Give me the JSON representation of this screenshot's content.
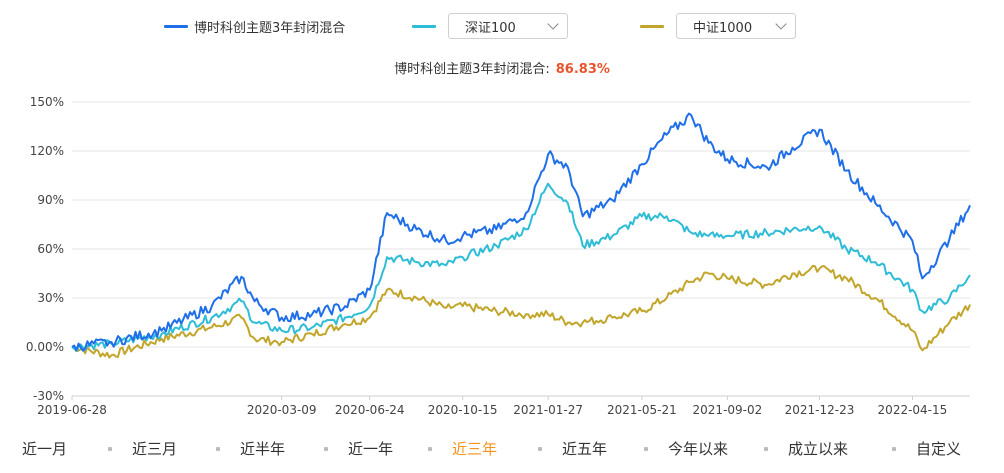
{
  "legend": {
    "series1": {
      "label": "博时科创主题3年封闭混合",
      "color": "#1f6fe8"
    },
    "series2": {
      "label": "深证100",
      "color": "#2fbcd6"
    },
    "series3": {
      "label": "中证1000",
      "color": "#c2a62c"
    }
  },
  "summary": {
    "name": "博时科创主题3年封闭混合:",
    "value": "86.83%"
  },
  "tabs": [
    {
      "label": "近一月",
      "active": false
    },
    {
      "label": "近三月",
      "active": false
    },
    {
      "label": "近半年",
      "active": false
    },
    {
      "label": "近一年",
      "active": false
    },
    {
      "label": "近三年",
      "active": true
    },
    {
      "label": "近五年",
      "active": false
    },
    {
      "label": "今年以来",
      "active": false
    },
    {
      "label": "成立以来",
      "active": false
    },
    {
      "label": "自定义",
      "active": false
    }
  ],
  "chart_data": {
    "type": "line",
    "title": "",
    "xlabel": "",
    "ylabel": "",
    "ylim": [
      -30,
      150
    ],
    "y_ticks": [
      "-30%",
      "0.00%",
      "30%",
      "60%",
      "90%",
      "120%",
      "150%"
    ],
    "x_tick_labels": [
      "2019-06-28",
      "2020-03-09",
      "2020-06-24",
      "2020-10-15",
      "2021-01-27",
      "2021-05-21",
      "2021-09-02",
      "2021-12-23",
      "2022-04-15"
    ],
    "grid": true,
    "x": [
      "2019-06-28",
      "2019-08-15",
      "2019-10-15",
      "2019-12-15",
      "2020-01-20",
      "2020-02-05",
      "2020-03-09",
      "2020-04-15",
      "2020-05-25",
      "2020-06-24",
      "2020-07-15",
      "2020-08-20",
      "2020-09-25",
      "2020-10-15",
      "2020-11-25",
      "2020-12-31",
      "2021-01-27",
      "2021-02-20",
      "2021-03-10",
      "2021-04-15",
      "2021-05-21",
      "2021-06-20",
      "2021-07-20",
      "2021-08-10",
      "2021-09-02",
      "2021-10-20",
      "2021-11-20",
      "2021-12-23",
      "2022-01-25",
      "2022-03-01",
      "2022-04-15",
      "2022-04-27",
      "2022-05-30",
      "2022-06-24"
    ],
    "series": [
      {
        "name": "博时科创主题3年封闭混合",
        "color": "#1f6fe8",
        "values": [
          0,
          3,
          10,
          25,
          43,
          28,
          18,
          20,
          25,
          35,
          82,
          72,
          65,
          68,
          72,
          82,
          118,
          110,
          80,
          90,
          112,
          130,
          142,
          125,
          115,
          110,
          122,
          133,
          108,
          88,
          65,
          42,
          66,
          86.83
        ]
      },
      {
        "name": "深证100",
        "color": "#2fbcd6",
        "values": [
          0,
          2,
          8,
          18,
          28,
          15,
          10,
          12,
          18,
          25,
          55,
          52,
          50,
          55,
          62,
          72,
          100,
          88,
          62,
          68,
          80,
          80,
          70,
          68,
          68,
          70,
          72,
          74,
          60,
          52,
          35,
          22,
          30,
          44
        ]
      },
      {
        "name": "中证1000",
        "color": "#c2a62c",
        "values": [
          0,
          -5,
          5,
          12,
          18,
          5,
          3,
          8,
          14,
          18,
          35,
          30,
          24,
          25,
          22,
          20,
          20,
          15,
          15,
          18,
          22,
          30,
          40,
          45,
          42,
          38,
          45,
          48,
          42,
          30,
          10,
          -2,
          15,
          26
        ]
      }
    ]
  }
}
